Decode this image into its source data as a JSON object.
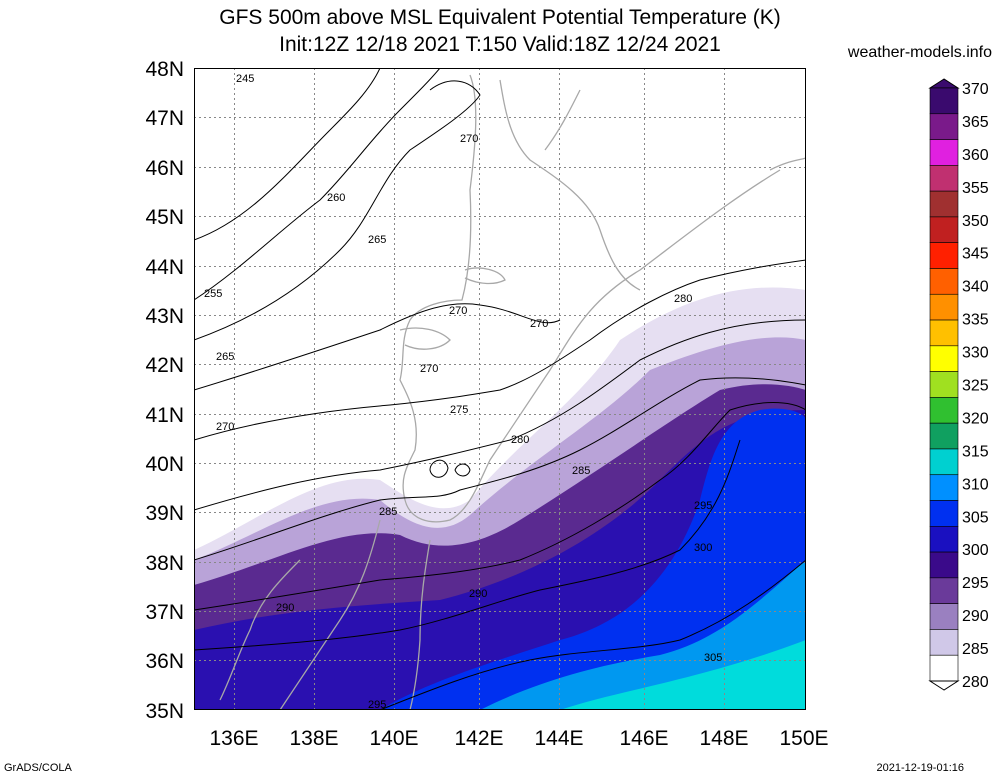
{
  "header": {
    "title_line1": "GFS 500m above MSL Equivalent Potential Temperature (K)",
    "title_line2": "Init:12Z 12/18 2021 T:150 Valid:18Z 12/24 2021",
    "site": "weather-models.info"
  },
  "footer": {
    "left": "GrADS/COLA",
    "right": "2021-12-19-01:16"
  },
  "axes": {
    "lat_labels": [
      "48N",
      "47N",
      "46N",
      "45N",
      "44N",
      "43N",
      "42N",
      "41N",
      "40N",
      "39N",
      "38N",
      "37N",
      "36N",
      "35N"
    ],
    "lon_labels": [
      "136E",
      "138E",
      "140E",
      "142E",
      "144E",
      "146E",
      "148E",
      "150E"
    ]
  },
  "colorbar": {
    "labels": [
      "370",
      "365",
      "360",
      "355",
      "350",
      "345",
      "340",
      "335",
      "330",
      "325",
      "320",
      "315",
      "310",
      "305",
      "300",
      "295",
      "290",
      "285",
      "280"
    ],
    "colors": [
      "#3a0a6e",
      "#7a1a8a",
      "#e020e0",
      "#c03070",
      "#a03030",
      "#c02020",
      "#ff2000",
      "#ff6000",
      "#ff9000",
      "#ffc000",
      "#ffff00",
      "#a0e020",
      "#30c030",
      "#10a060",
      "#00d0d0",
      "#0090ff",
      "#0030f0",
      "#1a10c0",
      "#3a0a8a",
      "#6a3a9a",
      "#9a80c0",
      "#d0c8e8",
      "#ffffff"
    ]
  },
  "contour_labels": [
    "245",
    "270",
    "260",
    "265",
    "255",
    "265",
    "270",
    "270",
    "270",
    "270",
    "275",
    "280",
    "280",
    "285",
    "285",
    "290",
    "295",
    "290",
    "300",
    "305",
    "295"
  ]
}
